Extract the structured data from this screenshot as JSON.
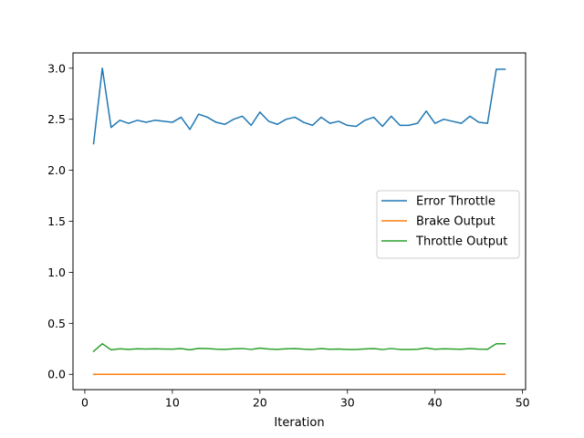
{
  "chart_data": {
    "type": "line",
    "title": "",
    "xlabel": "Iteration",
    "ylabel": "",
    "xlim": [
      -1.35,
      50.35
    ],
    "ylim": [
      -0.15,
      3.15
    ],
    "xticks": [
      0,
      10,
      20,
      30,
      40,
      50
    ],
    "yticks": [
      0.0,
      0.5,
      1.0,
      1.5,
      2.0,
      2.5,
      3.0
    ],
    "ytick_labels": [
      "0.0",
      "0.5",
      "1.0",
      "1.5",
      "2.0",
      "2.5",
      "3.0"
    ],
    "grid": false,
    "legend_position": "center-right",
    "x": [
      1,
      2,
      3,
      4,
      5,
      6,
      7,
      8,
      9,
      10,
      11,
      12,
      13,
      14,
      15,
      16,
      17,
      18,
      19,
      20,
      21,
      22,
      23,
      24,
      25,
      26,
      27,
      28,
      29,
      30,
      31,
      32,
      33,
      34,
      35,
      36,
      37,
      38,
      39,
      40,
      41,
      42,
      43,
      44,
      45,
      46,
      47,
      48
    ],
    "series": [
      {
        "name": "Error Throttle",
        "color": "#1f77b4",
        "values": [
          2.26,
          3.0,
          2.42,
          2.49,
          2.46,
          2.49,
          2.47,
          2.49,
          2.48,
          2.47,
          2.52,
          2.4,
          2.55,
          2.52,
          2.47,
          2.45,
          2.5,
          2.53,
          2.44,
          2.57,
          2.48,
          2.45,
          2.5,
          2.52,
          2.47,
          2.44,
          2.52,
          2.46,
          2.48,
          2.44,
          2.43,
          2.49,
          2.52,
          2.43,
          2.53,
          2.44,
          2.44,
          2.46,
          2.58,
          2.46,
          2.5,
          2.48,
          2.46,
          2.53,
          2.47,
          2.46,
          2.99,
          2.99
        ]
      },
      {
        "name": "Brake Output",
        "color": "#ff7f0e",
        "values": [
          0,
          0,
          0,
          0,
          0,
          0,
          0,
          0,
          0,
          0,
          0,
          0,
          0,
          0,
          0,
          0,
          0,
          0,
          0,
          0,
          0,
          0,
          0,
          0,
          0,
          0,
          0,
          0,
          0,
          0,
          0,
          0,
          0,
          0,
          0,
          0,
          0,
          0,
          0,
          0,
          0,
          0,
          0,
          0,
          0,
          0,
          0,
          0
        ]
      },
      {
        "name": "Throttle Output",
        "color": "#2ca02c",
        "values": [
          0.225,
          0.3,
          0.24,
          0.25,
          0.245,
          0.25,
          0.248,
          0.25,
          0.248,
          0.247,
          0.252,
          0.24,
          0.255,
          0.252,
          0.247,
          0.245,
          0.25,
          0.253,
          0.244,
          0.257,
          0.248,
          0.245,
          0.25,
          0.252,
          0.247,
          0.244,
          0.252,
          0.246,
          0.248,
          0.244,
          0.243,
          0.249,
          0.252,
          0.243,
          0.253,
          0.244,
          0.244,
          0.246,
          0.258,
          0.246,
          0.25,
          0.248,
          0.246,
          0.253,
          0.247,
          0.246,
          0.299,
          0.299
        ]
      }
    ]
  }
}
